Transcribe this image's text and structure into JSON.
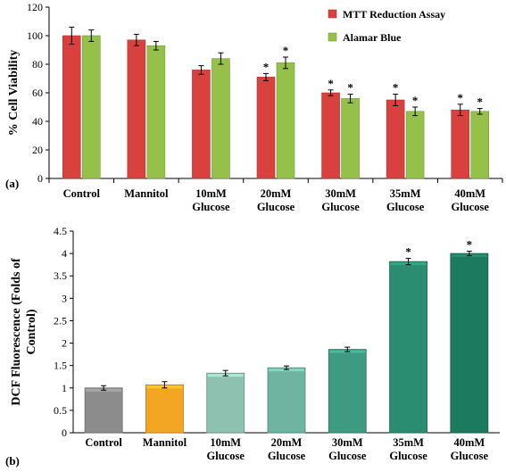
{
  "chart_data": [
    {
      "type": "bar",
      "panel_label": "(a)",
      "categories": [
        [
          "Control"
        ],
        [
          "Mannitol"
        ],
        [
          "10mM",
          "Glucose"
        ],
        [
          "20mM",
          "Glucose"
        ],
        [
          "30mM",
          "Glucose"
        ],
        [
          "35mM",
          "Glucose"
        ],
        [
          "40mM",
          "Glucose"
        ]
      ],
      "ylabel": "% Cell Viability",
      "ylim": [
        0,
        120
      ],
      "yticks": [
        0,
        20,
        40,
        60,
        80,
        100,
        120
      ],
      "legend_position": "top-right",
      "grid": false,
      "series": [
        {
          "name": "MTT Reduction Assay",
          "color": "#d9413e",
          "values": [
            100,
            97,
            76,
            71,
            60,
            55,
            48
          ],
          "errors": [
            6,
            4,
            3,
            2.5,
            2,
            4,
            4
          ],
          "significant": [
            false,
            false,
            false,
            true,
            true,
            true,
            true
          ]
        },
        {
          "name": "Alamar Blue",
          "color": "#95c14a",
          "values": [
            100,
            93,
            84,
            81,
            56,
            47,
            47
          ],
          "errors": [
            4,
            3,
            4,
            4,
            3,
            3,
            2
          ],
          "significant": [
            false,
            false,
            false,
            true,
            true,
            true,
            true
          ]
        }
      ],
      "significance_marker": "*"
    },
    {
      "type": "bar",
      "panel_label": "(b)",
      "categories": [
        [
          "Control"
        ],
        [
          "Mannitol"
        ],
        [
          "10mM",
          "Glucose"
        ],
        [
          "20mM",
          "Glucose"
        ],
        [
          "30mM",
          "Glucose"
        ],
        [
          "35mM",
          "Glucose"
        ],
        [
          "40mM",
          "Glucose"
        ]
      ],
      "ylabel_lines": [
        "DCF Fluorescence (Folds of",
        "Control)"
      ],
      "ylim": [
        0,
        4.5
      ],
      "yticks": [
        "0",
        "0.5",
        "1",
        "1.5",
        "2",
        "2.5",
        "3",
        "3.5",
        "4",
        "4.5"
      ],
      "grid": false,
      "values": [
        1.0,
        1.07,
        1.33,
        1.45,
        1.86,
        3.82,
        4.0
      ],
      "errors": [
        0.05,
        0.07,
        0.06,
        0.04,
        0.05,
        0.07,
        0.05
      ],
      "colors": [
        "#8c8c8c",
        "#f2a623",
        "#8fc1b0",
        "#6eb4a0",
        "#3f9a82",
        "#2a8c70",
        "#1c7a5f"
      ],
      "significant": [
        false,
        false,
        false,
        false,
        false,
        true,
        true
      ],
      "significance_marker": "*"
    }
  ]
}
